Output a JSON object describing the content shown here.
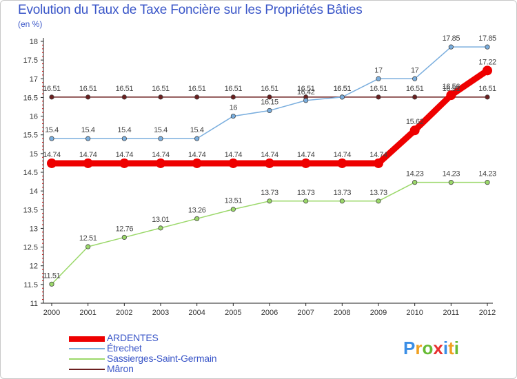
{
  "header": {
    "title": "Evolution du Taux de Taxe Foncière sur les Propriétés Bâties",
    "unit": "(en %)"
  },
  "chart_data": {
    "type": "line",
    "title": "Evolution du Taux de Taxe Foncière sur les Propriétés Bâties",
    "ylabel": "(en %)",
    "xlabel": "",
    "ylim": [
      11,
      18
    ],
    "y_ticks": [
      11,
      11.5,
      12,
      12.5,
      13,
      13.5,
      14,
      14.5,
      15,
      15.5,
      16,
      16.5,
      17,
      17.5,
      18
    ],
    "x": [
      "2000",
      "2001",
      "2002",
      "2003",
      "2004",
      "2005",
      "2006",
      "2007",
      "2008",
      "2009",
      "2010",
      "2011",
      "2012"
    ],
    "grid": false,
    "series": [
      {
        "name": "Mâron",
        "color": "#6b1f1f",
        "values": [
          16.51,
          16.51,
          16.51,
          16.51,
          16.51,
          16.51,
          16.51,
          16.51,
          16.51,
          16.51,
          16.51,
          16.51,
          16.51
        ],
        "labels": [
          "16.51",
          "16.51",
          "16.51",
          "16.51",
          "16.51",
          "16.51",
          "16.51",
          "16.51",
          "16.51",
          "16.51",
          "16.51",
          "16.51",
          "16.51"
        ]
      },
      {
        "name": "Sassierges-Saint-Germain",
        "color": "#9bd86a",
        "values": [
          11.51,
          12.51,
          12.76,
          13.01,
          13.26,
          13.51,
          13.73,
          13.73,
          13.73,
          13.73,
          14.23,
          14.23,
          14.23
        ],
        "labels": [
          "11.51",
          "12.51",
          "12.76",
          "13.01",
          "13.26",
          "13.51",
          "13.73",
          "13.73",
          "13.73",
          "13.73",
          "14.23",
          "14.23",
          "14.23"
        ]
      },
      {
        "name": "Étrechet",
        "color": "#7aaede",
        "values": [
          15.4,
          15.4,
          15.4,
          15.4,
          15.4,
          16,
          16.15,
          16.42,
          16.51,
          17,
          17,
          17.85,
          17.85
        ],
        "labels": [
          "15.4",
          "15.4",
          "15.4",
          "15.4",
          "15.4",
          "16",
          "16.15",
          "16.42",
          "16.51",
          "17",
          "17",
          "17.85",
          "17.85"
        ]
      },
      {
        "name": "ARDENTES",
        "color": "#ee0000",
        "values": [
          14.74,
          14.74,
          14.74,
          14.74,
          14.74,
          14.74,
          14.74,
          14.74,
          14.74,
          14.74,
          15.62,
          16.56,
          17.22
        ],
        "labels": [
          "14.74",
          "14.74",
          "14.74",
          "14.74",
          "14.74",
          "14.74",
          "14.74",
          "14.74",
          "14.74",
          "14.74",
          "15.62",
          "16.56",
          "17.22"
        ]
      }
    ]
  },
  "legend": {
    "items": [
      {
        "label": "ARDENTES",
        "color": "#ee0000"
      },
      {
        "label": "Étrechet",
        "color": "#7aaede"
      },
      {
        "label": "Sassierges-Saint-Germain",
        "color": "#9bd86a"
      },
      {
        "label": "Mâron",
        "color": "#6b1f1f"
      }
    ]
  },
  "logo": {
    "text": "Proxiti",
    "letters": [
      "P",
      "r",
      "o",
      "x",
      "i",
      "t",
      "i"
    ],
    "colors": [
      "#3a8ee6",
      "#f0a020",
      "#66bb33",
      "#e83030",
      "#3a8ee6",
      "#f0a020",
      "#66bb33"
    ]
  }
}
